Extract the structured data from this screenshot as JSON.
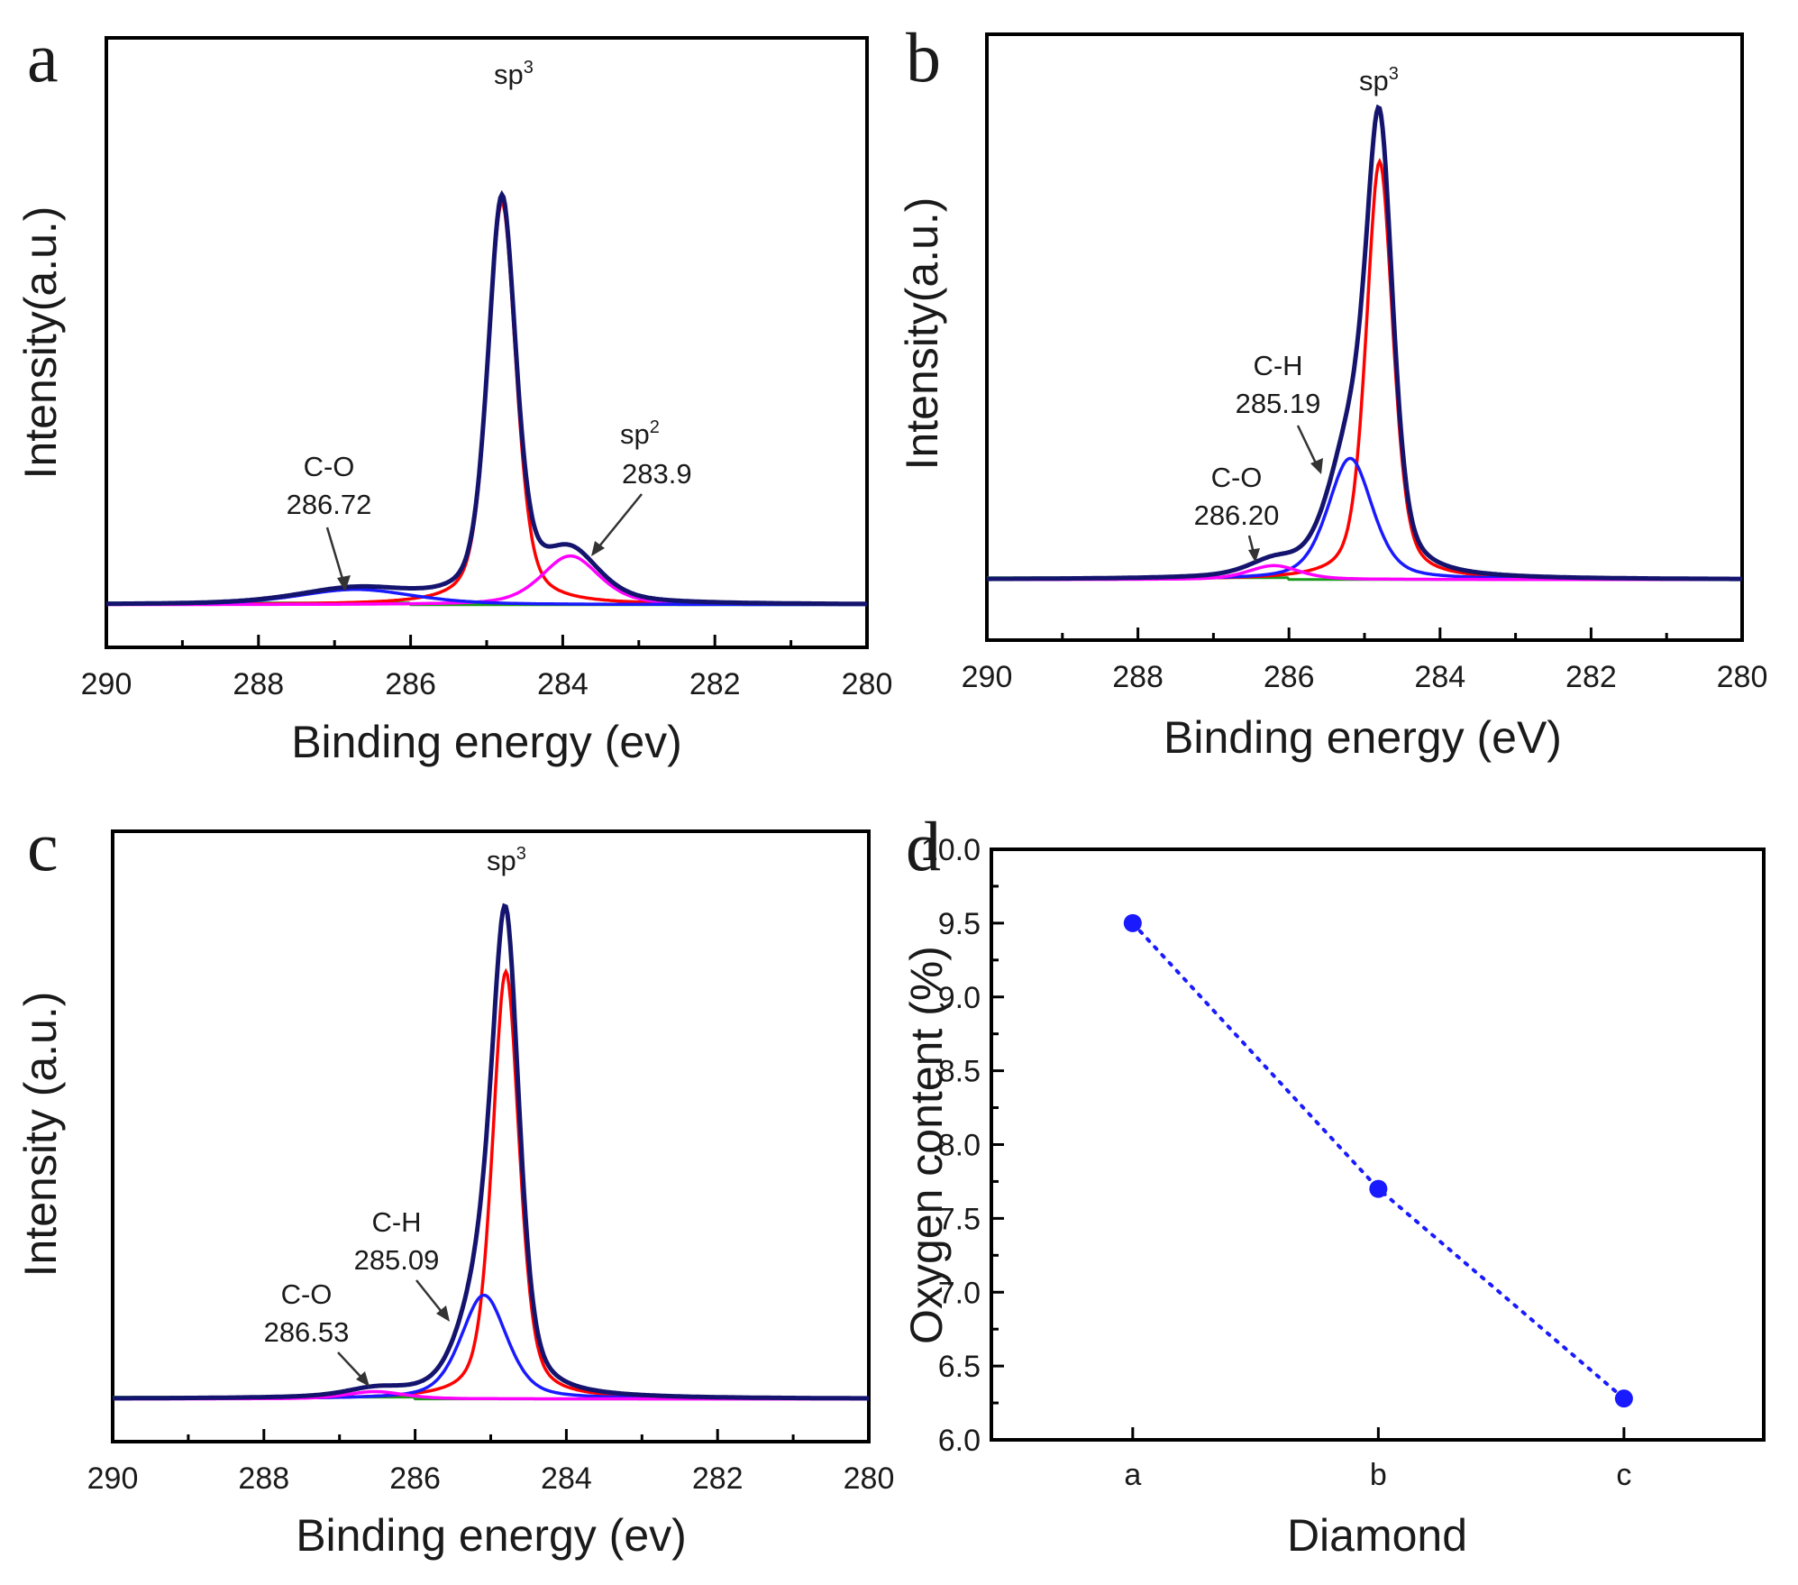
{
  "chart_data": [
    {
      "panel": "a",
      "type": "line",
      "xlabel": "Binding energy (ev)",
      "ylabel": "Intensity(a.u.)",
      "xlim": [
        290,
        280
      ],
      "xticks": [
        290,
        288,
        286,
        284,
        282,
        280
      ],
      "ylim": [
        0,
        1
      ],
      "baseline": 0.07,
      "colors": {
        "envelope": "#14146e",
        "sp3": "#ff0000",
        "sp2": "#ff00ff",
        "co": "#1a1aff",
        "bg": "#1a9a1a"
      },
      "components": [
        {
          "name": "sp3",
          "color": "#ff0000",
          "center": 284.8,
          "height": 0.66,
          "width": 0.22
        },
        {
          "name": "sp2",
          "color": "#ff00ff",
          "center": 283.9,
          "height": 0.08,
          "width": 0.45
        },
        {
          "name": "C-O",
          "color": "#1a1aff",
          "center": 286.72,
          "height": 0.025,
          "width": 0.9
        }
      ],
      "annotations": [
        {
          "text": "sp",
          "sup": "3"
        },
        {
          "line1": "C-O",
          "line2": "286.72"
        },
        {
          "line1": "sp",
          "sup": "2",
          "line2": "283.9"
        }
      ]
    },
    {
      "panel": "b",
      "type": "line",
      "xlabel": "Binding energy (eV)",
      "ylabel": "Intensity(a.u.)",
      "xlim": [
        290,
        280
      ],
      "xticks": [
        290,
        288,
        286,
        284,
        282,
        280
      ],
      "ylim": [
        0,
        1
      ],
      "baseline": 0.1,
      "colors": {
        "envelope": "#14146e",
        "sp3": "#ff0000",
        "sp2": "#ff00ff",
        "co": "#1a1aff",
        "bg": "#1a9a1a"
      },
      "components": [
        {
          "name": "sp3",
          "color": "#ff0000",
          "center": 284.8,
          "height": 0.69,
          "width": 0.21
        },
        {
          "name": "C-H",
          "color": "#1a1aff",
          "center": 285.19,
          "height": 0.2,
          "width": 0.35
        },
        {
          "name": "C-O",
          "color": "#ff00ff",
          "center": 286.2,
          "height": 0.023,
          "width": 0.4
        }
      ],
      "annotations": [
        {
          "text": "sp",
          "sup": "3"
        },
        {
          "line1": "C-H",
          "line2": "285.19"
        },
        {
          "line1": "C-O",
          "line2": "286.20"
        }
      ]
    },
    {
      "panel": "c",
      "type": "line",
      "xlabel": "Binding energy (ev)",
      "ylabel": "Intensity (a.u.)",
      "xlim": [
        290,
        280
      ],
      "xticks": [
        290,
        288,
        286,
        284,
        282,
        280
      ],
      "ylim": [
        0,
        1
      ],
      "baseline": 0.07,
      "colors": {
        "envelope": "#14146e",
        "sp3": "#ff0000",
        "sp2": "#ff00ff",
        "co": "#1a1aff",
        "bg": "#1a9a1a"
      },
      "components": [
        {
          "name": "sp3",
          "color": "#ff0000",
          "center": 284.8,
          "height": 0.7,
          "width": 0.21
        },
        {
          "name": "C-H",
          "color": "#1a1aff",
          "center": 285.09,
          "height": 0.17,
          "width": 0.36
        },
        {
          "name": "C-O",
          "color": "#ff00ff",
          "center": 286.53,
          "height": 0.012,
          "width": 0.45
        }
      ],
      "annotations": [
        {
          "text": "sp",
          "sup": "3"
        },
        {
          "line1": "C-H",
          "line2": "285.09"
        },
        {
          "line1": "C-O",
          "line2": "286.53"
        }
      ]
    },
    {
      "panel": "d",
      "type": "scatter",
      "xlabel": "Diamond",
      "ylabel": "Oxygen content (%)",
      "categories": [
        "a",
        "b",
        "c"
      ],
      "values": [
        9.5,
        7.7,
        6.28
      ],
      "ylim": [
        6.0,
        10.0
      ],
      "yticks": [
        "6.0",
        "6.5",
        "7.0",
        "7.5",
        "8.0",
        "8.5",
        "9.0",
        "9.5",
        "10.0"
      ],
      "color": "#1a1aff",
      "line_style": "dotted"
    }
  ]
}
